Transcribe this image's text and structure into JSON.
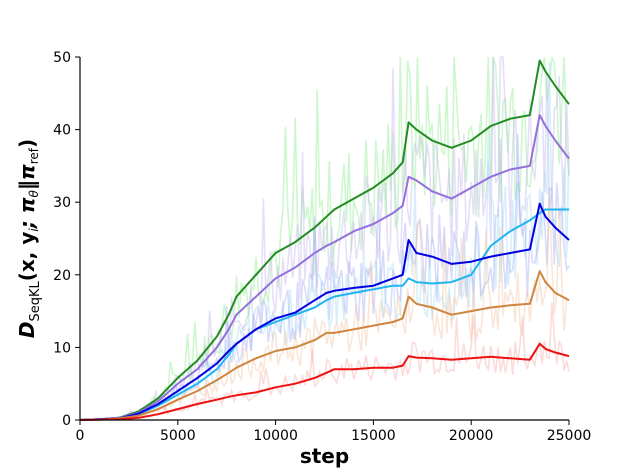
{
  "chart_data": {
    "type": "line",
    "title": "",
    "xlabel": "step",
    "ylabel_parts": {
      "main": "D",
      "subscript": "SeqKL",
      "args": "(x, y",
      "i_sub": "i",
      "sep": "; π",
      "theta_sub": "θ",
      "norm": "‖π",
      "ref_sub": "ref",
      "close": ")"
    },
    "xlim": [
      0,
      25000
    ],
    "ylim": [
      0,
      50
    ],
    "xticks": [
      0,
      5000,
      10000,
      15000,
      20000,
      25000
    ],
    "yticks": [
      0,
      10,
      20,
      30,
      40,
      50
    ],
    "grid": false,
    "legend": "none",
    "x": [
      0,
      1000,
      2000,
      3000,
      4000,
      5000,
      6000,
      7000,
      7600,
      8000,
      9000,
      10000,
      11000,
      12000,
      12600,
      13000,
      14000,
      15000,
      16000,
      16500,
      16800,
      17200,
      18000,
      19000,
      20000,
      21000,
      22000,
      23000,
      23500,
      23800,
      24300,
      25000
    ],
    "series": [
      {
        "color": "#228b22",
        "values": [
          0,
          0.1,
          0.3,
          1.2,
          3.0,
          5.8,
          8.2,
          11.5,
          14.5,
          17.0,
          20.0,
          23.0,
          24.5,
          26.5,
          28.0,
          29.0,
          30.5,
          32.0,
          34.0,
          35.5,
          41.0,
          40.0,
          38.5,
          37.5,
          38.5,
          40.5,
          41.5,
          42.0,
          49.5,
          48.0,
          46.0,
          43.5
        ],
        "noise_color": "#90ee90"
      },
      {
        "color": "#9370db",
        "values": [
          0,
          0.1,
          0.3,
          1.0,
          2.6,
          5.0,
          7.0,
          10.0,
          12.5,
          14.5,
          17.0,
          19.5,
          21.0,
          23.0,
          24.0,
          24.5,
          26.0,
          27.0,
          28.5,
          29.5,
          33.5,
          33.0,
          31.5,
          30.5,
          32.0,
          33.5,
          34.5,
          35.0,
          42.0,
          40.5,
          38.5,
          36.0
        ],
        "noise_color": "#c8b8f0"
      },
      {
        "color": "#1fb5f0",
        "values": [
          0,
          0.1,
          0.2,
          0.8,
          2.0,
          3.5,
          5.0,
          7.0,
          9.0,
          10.5,
          12.5,
          13.5,
          14.5,
          15.5,
          16.5,
          17.0,
          17.5,
          18.0,
          18.5,
          18.5,
          19.5,
          19.0,
          18.8,
          19.0,
          20.0,
          24.0,
          26.0,
          27.5,
          28.5,
          29.0,
          29.0,
          29.0
        ],
        "noise_color": "#a5dcf5"
      },
      {
        "color": "#0000e0",
        "values": [
          0,
          0.1,
          0.2,
          0.9,
          2.2,
          4.0,
          5.8,
          7.8,
          9.5,
          10.5,
          12.5,
          14.0,
          14.8,
          16.5,
          17.5,
          17.8,
          18.2,
          18.5,
          19.5,
          20.0,
          24.8,
          23.0,
          22.5,
          21.5,
          21.8,
          22.5,
          23.0,
          23.5,
          29.8,
          28.0,
          26.5,
          24.8
        ],
        "noise_color": "#aab0f5"
      },
      {
        "color": "#cd853f",
        "values": [
          0,
          0.05,
          0.2,
          0.6,
          1.5,
          2.8,
          4.0,
          5.5,
          6.5,
          7.2,
          8.5,
          9.5,
          10.0,
          11.0,
          12.0,
          12.0,
          12.5,
          13.0,
          13.5,
          14.0,
          17.0,
          16.0,
          15.5,
          14.5,
          15.0,
          15.5,
          15.8,
          16.0,
          20.5,
          19.0,
          17.5,
          16.5
        ],
        "noise_color": "#f5c8a8"
      },
      {
        "color": "#ee1111",
        "values": [
          0,
          0.05,
          0.1,
          0.3,
          0.8,
          1.5,
          2.2,
          2.8,
          3.2,
          3.4,
          3.8,
          4.5,
          5.0,
          5.8,
          6.5,
          7.0,
          7.0,
          7.2,
          7.2,
          7.5,
          8.8,
          8.6,
          8.5,
          8.3,
          8.5,
          8.7,
          8.5,
          8.3,
          10.5,
          9.8,
          9.3,
          8.8
        ],
        "noise_color": "#f8b0b0"
      }
    ]
  }
}
